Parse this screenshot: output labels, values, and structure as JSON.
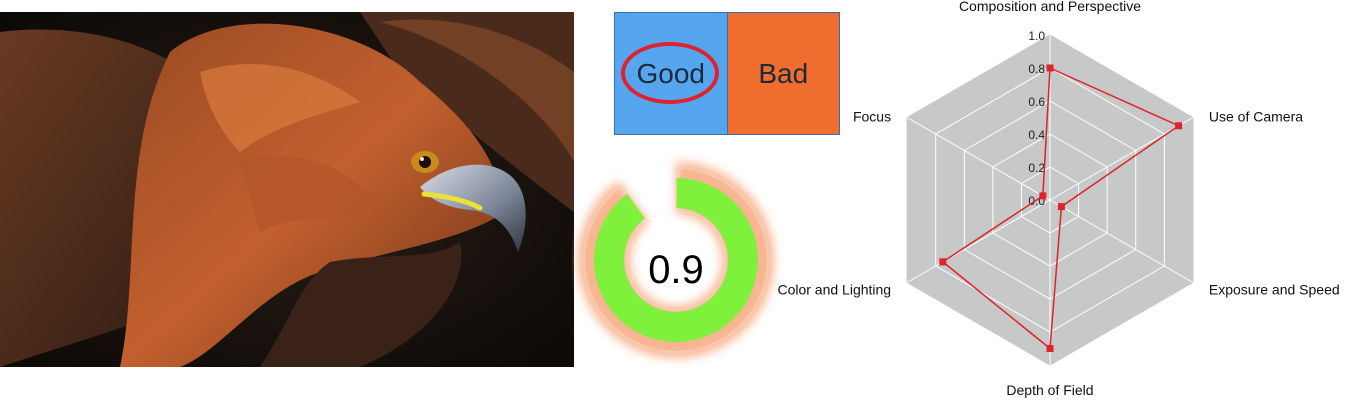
{
  "verdict": {
    "good_label": "Good",
    "bad_label": "Bad",
    "selected": "Good",
    "colors": {
      "good": "#56a6ef",
      "bad": "#ee6d2f",
      "highlight": "#e0222e"
    }
  },
  "score": {
    "value_text": "0.9",
    "value": 0.9,
    "colors": {
      "ring": "#7ff03c",
      "glow": "#f7b591"
    }
  },
  "chart_data": {
    "type": "radar",
    "axes": [
      "Composition and Perspective",
      "Use of Camera",
      "Exposure and Speed",
      "Depth of Field",
      "Color and Lighting",
      "Focus"
    ],
    "tick_labels": [
      "0.0",
      "0.2",
      "0.4",
      "0.6",
      "0.8",
      "1.0"
    ],
    "range": [
      0,
      1
    ],
    "series": [
      {
        "values": [
          0.8,
          0.9,
          0.08,
          0.9,
          0.75,
          0.05
        ],
        "color": "#e0222e"
      }
    ],
    "grid": true,
    "colors": {
      "fill": "#c6c9c7",
      "grid": "#ffffff"
    }
  }
}
